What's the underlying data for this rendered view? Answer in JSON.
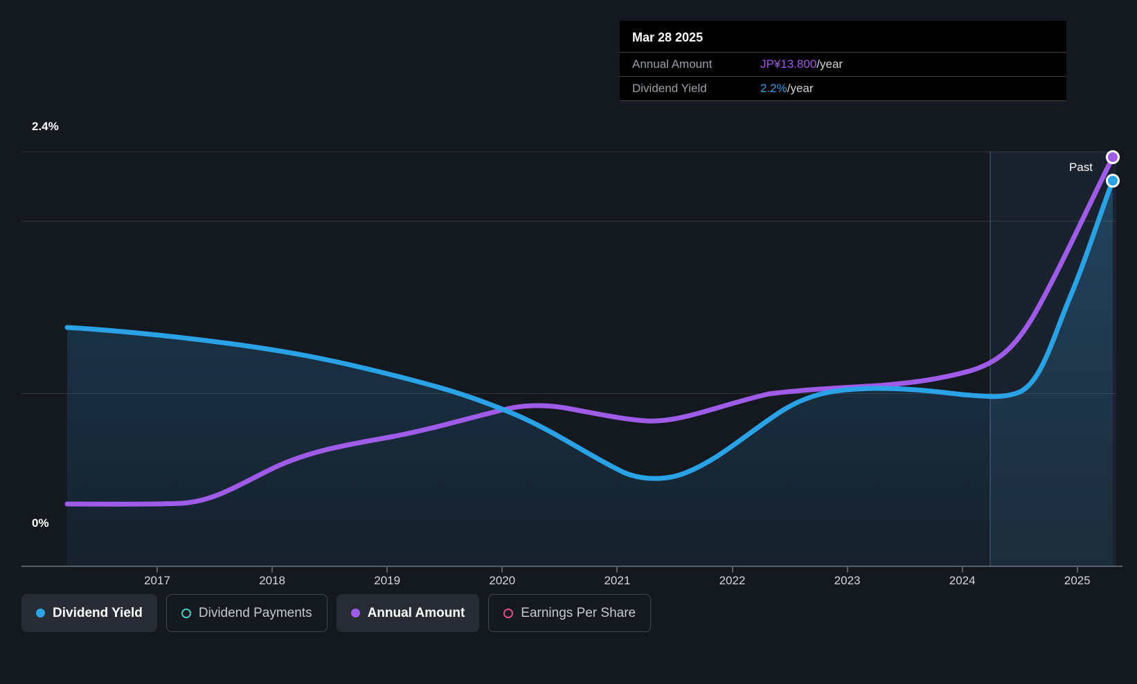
{
  "tooltip": {
    "date": "Mar 28 2025",
    "rows": [
      {
        "label": "Annual Amount",
        "value": "JP¥13.800",
        "suffix": "/year",
        "color": "#a259e8"
      },
      {
        "label": "Dividend Yield",
        "value": "2.2%",
        "suffix": "/year",
        "color": "#29a2e6"
      }
    ]
  },
  "y_axis": {
    "top_label": "2.4%",
    "bottom_label": "0%"
  },
  "past_label": "Past",
  "legend": [
    {
      "label": "Dividend Yield",
      "color": "#29a2e6",
      "style": "filled-dot",
      "active": true
    },
    {
      "label": "Dividend Payments",
      "color": "#46cfc1",
      "style": "ring",
      "active": false
    },
    {
      "label": "Annual Amount",
      "color": "#9e5ce8",
      "style": "filled-dot",
      "active": true
    },
    {
      "label": "Earnings Per Share",
      "color": "#e0508e",
      "style": "ring",
      "active": false
    }
  ],
  "colors": {
    "background": "#14181f",
    "dividend_yield": "#29a2e6",
    "annual_amount": "#9e5ce8",
    "dividend_payments": "#46cfc1",
    "earnings_per_share": "#e0508e",
    "marker_ring": "#ffffff",
    "gridline": "rgba(255,255,255,0.13)",
    "axis": "#5a5f66",
    "tooltip_background": "#000000",
    "past_band": "rgba(100,170,220,0.08)"
  },
  "chart_data": {
    "type": "line",
    "x_ticks": [
      "2017",
      "2018",
      "2019",
      "2020",
      "2021",
      "2022",
      "2023",
      "2024",
      "2025"
    ],
    "x_range": [
      2016.2,
      2025.3
    ],
    "y_axis": {
      "min": 0,
      "max": 2.4,
      "unit": "%",
      "gridline_values": [
        0,
        1.0,
        2.0,
        2.4
      ],
      "labels_shown": [
        "2.4%",
        "0%"
      ]
    },
    "legend_position": "bottom",
    "grid": true,
    "annotations": {
      "past_region_start": 2024.25,
      "past_region_label": "Past",
      "hover_date": "Mar 28 2025"
    },
    "series": [
      {
        "name": "Dividend Yield",
        "unit": "%",
        "color": "#29a2e6",
        "area_fill": true,
        "end_value_pct": 2.2,
        "points": [
          [
            2016.2,
            1.38
          ],
          [
            2017,
            1.35
          ],
          [
            2018,
            1.25
          ],
          [
            2019,
            1.11
          ],
          [
            2019.5,
            1.03
          ],
          [
            2020,
            0.91
          ],
          [
            2020.5,
            0.73
          ],
          [
            2021.3,
            0.5
          ],
          [
            2022,
            0.71
          ],
          [
            2022.5,
            0.9
          ],
          [
            2023,
            1.02
          ],
          [
            2023.3,
            1.03
          ],
          [
            2024,
            0.99
          ],
          [
            2024.3,
            0.97
          ],
          [
            2024.7,
            1.31
          ],
          [
            2025.24,
            2.2
          ]
        ]
      },
      {
        "name": "Annual Amount",
        "unit": "JP¥/year",
        "color": "#9e5ce8",
        "area_fill": false,
        "end_value_jpy": 13.8,
        "note": "secondary scale not labeled on axis; values estimated from end value JP¥13.800/year",
        "points": [
          [
            2016.2,
            2.1
          ],
          [
            2017,
            2.1
          ],
          [
            2017.3,
            2.1
          ],
          [
            2018,
            3.3
          ],
          [
            2019,
            4.3
          ],
          [
            2019.7,
            5.0
          ],
          [
            2020.3,
            5.4
          ],
          [
            2021.5,
            4.9
          ],
          [
            2022,
            5.7
          ],
          [
            2023,
            6.0
          ],
          [
            2023.5,
            6.3
          ],
          [
            2024,
            6.5
          ],
          [
            2024.3,
            7.3
          ],
          [
            2024.7,
            9.3
          ],
          [
            2025.24,
            13.8
          ]
        ]
      },
      {
        "name": "Dividend Payments",
        "color": "#46cfc1",
        "visible": false,
        "points": []
      },
      {
        "name": "Earnings Per Share",
        "color": "#e0508e",
        "visible": false,
        "points": []
      }
    ]
  }
}
